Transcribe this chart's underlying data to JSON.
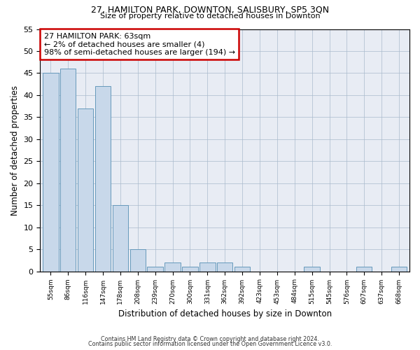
{
  "title1": "27, HAMILTON PARK, DOWNTON, SALISBURY, SP5 3QN",
  "title2": "Size of property relative to detached houses in Downton",
  "xlabel": "Distribution of detached houses by size in Downton",
  "ylabel": "Number of detached properties",
  "categories": [
    "55sqm",
    "86sqm",
    "116sqm",
    "147sqm",
    "178sqm",
    "208sqm",
    "239sqm",
    "270sqm",
    "300sqm",
    "331sqm",
    "362sqm",
    "392sqm",
    "423sqm",
    "453sqm",
    "484sqm",
    "515sqm",
    "545sqm",
    "576sqm",
    "607sqm",
    "637sqm",
    "668sqm"
  ],
  "values": [
    45,
    46,
    37,
    42,
    15,
    5,
    1,
    2,
    1,
    2,
    2,
    1,
    0,
    0,
    0,
    1,
    0,
    0,
    1,
    0,
    1
  ],
  "bar_color": "#c8d8ea",
  "bar_edge_color": "#6699bb",
  "annotation_line1": "27 HAMILTON PARK: 63sqm",
  "annotation_line2": "← 2% of detached houses are smaller (4)",
  "annotation_line3": "98% of semi-detached houses are larger (194) →",
  "annotation_box_color": "#ffffff",
  "annotation_box_edge_color": "#cc0000",
  "ylim": [
    0,
    55
  ],
  "yticks": [
    0,
    5,
    10,
    15,
    20,
    25,
    30,
    35,
    40,
    45,
    50,
    55
  ],
  "grid_color": "#aabbcc",
  "bg_color": "#e8ecf4",
  "footer1": "Contains HM Land Registry data © Crown copyright and database right 2024.",
  "footer2": "Contains public sector information licensed under the Open Government Licence v3.0."
}
